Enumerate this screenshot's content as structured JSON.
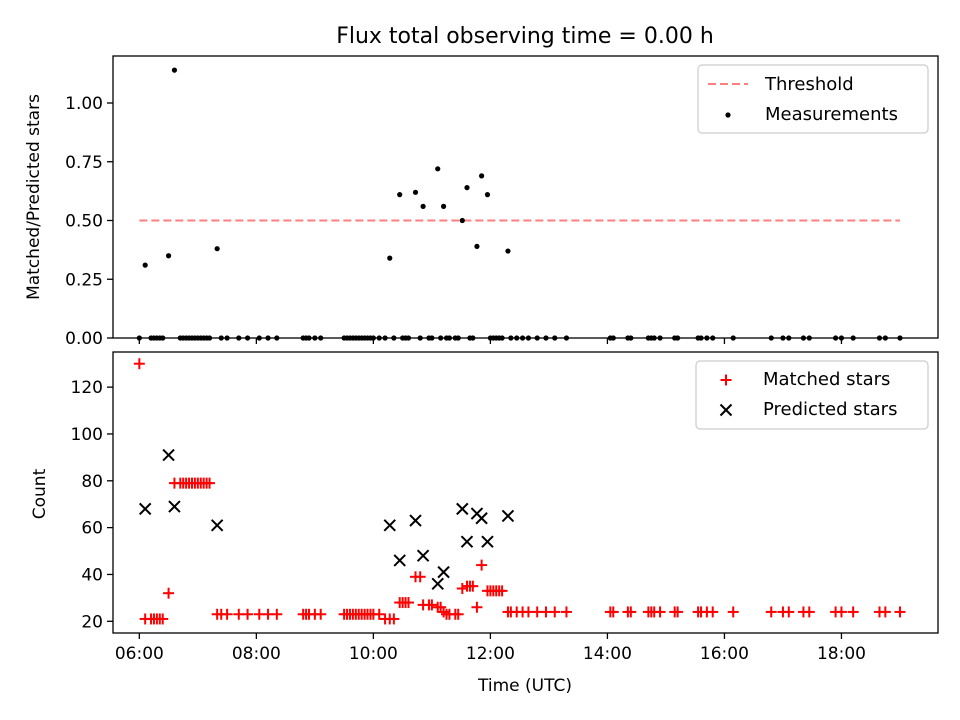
{
  "title": "Flux total observing time = 0.00 h",
  "colors": {
    "threshold": "#ff7f7f",
    "matched": "#ff0000",
    "predicted": "#000000",
    "measurement": "#000000"
  },
  "chart_data": [
    {
      "type": "scatter",
      "ylabel": "Matched/Predicted stars",
      "xlim": [
        5.55,
        19.65
      ],
      "ylim": [
        0,
        1.2
      ],
      "yticks": [
        0,
        0.25,
        0.5,
        0.75,
        1.0
      ],
      "ytick_labels": [
        "0.00",
        "0.25",
        "0.50",
        "0.75",
        "1.00"
      ],
      "legend_position": "top-right",
      "legend": [
        "Threshold",
        "Measurements"
      ],
      "threshold": {
        "name": "Threshold",
        "y": 0.5,
        "x": [
          6.0,
          19.0
        ],
        "style": "dashed"
      },
      "measurements": {
        "name": "Measurements",
        "points": [
          [
            6.0,
            0
          ],
          [
            6.1,
            0.31
          ],
          [
            6.2,
            0
          ],
          [
            6.25,
            0
          ],
          [
            6.3,
            0
          ],
          [
            6.35,
            0
          ],
          [
            6.4,
            0
          ],
          [
            6.5,
            0.35
          ],
          [
            6.6,
            1.14
          ],
          [
            6.7,
            0
          ],
          [
            6.75,
            0
          ],
          [
            6.8,
            0
          ],
          [
            6.85,
            0
          ],
          [
            6.9,
            0
          ],
          [
            6.95,
            0
          ],
          [
            7.0,
            0
          ],
          [
            7.05,
            0
          ],
          [
            7.1,
            0
          ],
          [
            7.15,
            0
          ],
          [
            7.2,
            0
          ],
          [
            7.33,
            0.38
          ],
          [
            7.4,
            0
          ],
          [
            7.5,
            0
          ],
          [
            7.7,
            0
          ],
          [
            7.85,
            0
          ],
          [
            8.05,
            0
          ],
          [
            8.2,
            0
          ],
          [
            8.35,
            0
          ],
          [
            8.8,
            0
          ],
          [
            8.85,
            0
          ],
          [
            8.9,
            0
          ],
          [
            9.0,
            0
          ],
          [
            9.1,
            0
          ],
          [
            9.5,
            0
          ],
          [
            9.55,
            0
          ],
          [
            9.6,
            0
          ],
          [
            9.65,
            0
          ],
          [
            9.7,
            0
          ],
          [
            9.75,
            0
          ],
          [
            9.8,
            0
          ],
          [
            9.85,
            0
          ],
          [
            9.9,
            0
          ],
          [
            9.95,
            0
          ],
          [
            10.0,
            0
          ],
          [
            10.1,
            0
          ],
          [
            10.2,
            0
          ],
          [
            10.28,
            0.34
          ],
          [
            10.35,
            0
          ],
          [
            10.45,
            0.61
          ],
          [
            10.5,
            0
          ],
          [
            10.55,
            0
          ],
          [
            10.6,
            0
          ],
          [
            10.72,
            0.62
          ],
          [
            10.8,
            0
          ],
          [
            10.85,
            0.56
          ],
          [
            10.95,
            0
          ],
          [
            11.0,
            0
          ],
          [
            11.1,
            0.72
          ],
          [
            11.15,
            0
          ],
          [
            11.2,
            0.56
          ],
          [
            11.25,
            0
          ],
          [
            11.3,
            0
          ],
          [
            11.4,
            0
          ],
          [
            11.45,
            0
          ],
          [
            11.52,
            0.5
          ],
          [
            11.6,
            0.64
          ],
          [
            11.65,
            0
          ],
          [
            11.7,
            0
          ],
          [
            11.77,
            0.39
          ],
          [
            11.85,
            0.69
          ],
          [
            11.95,
            0.61
          ],
          [
            12.0,
            0
          ],
          [
            12.05,
            0
          ],
          [
            12.1,
            0
          ],
          [
            12.15,
            0
          ],
          [
            12.2,
            0
          ],
          [
            12.3,
            0.37
          ],
          [
            12.35,
            0
          ],
          [
            12.45,
            0
          ],
          [
            12.55,
            0
          ],
          [
            12.65,
            0
          ],
          [
            12.8,
            0
          ],
          [
            12.95,
            0
          ],
          [
            13.1,
            0
          ],
          [
            13.3,
            0
          ],
          [
            14.05,
            0
          ],
          [
            14.1,
            0
          ],
          [
            14.35,
            0
          ],
          [
            14.4,
            0
          ],
          [
            14.7,
            0
          ],
          [
            14.75,
            0
          ],
          [
            14.8,
            0
          ],
          [
            14.9,
            0
          ],
          [
            15.15,
            0
          ],
          [
            15.2,
            0
          ],
          [
            15.55,
            0
          ],
          [
            15.6,
            0
          ],
          [
            15.7,
            0
          ],
          [
            15.8,
            0
          ],
          [
            16.15,
            0
          ],
          [
            16.8,
            0
          ],
          [
            17.0,
            0
          ],
          [
            17.1,
            0
          ],
          [
            17.35,
            0
          ],
          [
            17.45,
            0
          ],
          [
            17.9,
            0
          ],
          [
            18.0,
            0
          ],
          [
            18.2,
            0
          ],
          [
            18.65,
            0
          ],
          [
            18.75,
            0
          ],
          [
            19.0,
            0
          ]
        ]
      }
    },
    {
      "type": "scatter",
      "xlabel": "Time (UTC)",
      "ylabel": "Count",
      "xlim": [
        5.55,
        19.65
      ],
      "ylim": [
        15,
        135
      ],
      "xticks": [
        6,
        8,
        10,
        12,
        14,
        16,
        18
      ],
      "xtick_labels": [
        "06:00",
        "08:00",
        "10:00",
        "12:00",
        "14:00",
        "16:00",
        "18:00"
      ],
      "yticks": [
        20,
        40,
        60,
        80,
        100,
        120
      ],
      "ytick_labels": [
        "20",
        "40",
        "60",
        "80",
        "100",
        "120"
      ],
      "legend_position": "top-right",
      "legend": [
        "Matched stars",
        "Predicted stars"
      ],
      "series": [
        {
          "name": "Matched stars",
          "marker": "plus",
          "points": [
            [
              6.0,
              130
            ],
            [
              6.1,
              21
            ],
            [
              6.2,
              21
            ],
            [
              6.25,
              21
            ],
            [
              6.3,
              21
            ],
            [
              6.35,
              21
            ],
            [
              6.4,
              21
            ],
            [
              6.5,
              32
            ],
            [
              6.6,
              79
            ],
            [
              6.7,
              79
            ],
            [
              6.75,
              79
            ],
            [
              6.8,
              79
            ],
            [
              6.85,
              79
            ],
            [
              6.9,
              79
            ],
            [
              6.95,
              79
            ],
            [
              7.0,
              79
            ],
            [
              7.05,
              79
            ],
            [
              7.1,
              79
            ],
            [
              7.15,
              79
            ],
            [
              7.2,
              79
            ],
            [
              7.33,
              23
            ],
            [
              7.4,
              23
            ],
            [
              7.5,
              23
            ],
            [
              7.7,
              23
            ],
            [
              7.85,
              23
            ],
            [
              8.05,
              23
            ],
            [
              8.2,
              23
            ],
            [
              8.35,
              23
            ],
            [
              8.8,
              23
            ],
            [
              8.85,
              23
            ],
            [
              8.9,
              23
            ],
            [
              9.0,
              23
            ],
            [
              9.1,
              23
            ],
            [
              9.5,
              23
            ],
            [
              9.55,
              23
            ],
            [
              9.6,
              23
            ],
            [
              9.65,
              23
            ],
            [
              9.7,
              23
            ],
            [
              9.75,
              23
            ],
            [
              9.8,
              23
            ],
            [
              9.85,
              23
            ],
            [
              9.9,
              23
            ],
            [
              9.95,
              23
            ],
            [
              10.0,
              23
            ],
            [
              10.1,
              23
            ],
            [
              10.2,
              21
            ],
            [
              10.28,
              21
            ],
            [
              10.35,
              21
            ],
            [
              10.45,
              28
            ],
            [
              10.5,
              28
            ],
            [
              10.55,
              28
            ],
            [
              10.6,
              28
            ],
            [
              10.72,
              39
            ],
            [
              10.8,
              39
            ],
            [
              10.85,
              27
            ],
            [
              10.95,
              27
            ],
            [
              11.0,
              27
            ],
            [
              11.1,
              26
            ],
            [
              11.15,
              26
            ],
            [
              11.2,
              24
            ],
            [
              11.25,
              23
            ],
            [
              11.3,
              23
            ],
            [
              11.4,
              23
            ],
            [
              11.45,
              23
            ],
            [
              11.52,
              34
            ],
            [
              11.6,
              35
            ],
            [
              11.65,
              35
            ],
            [
              11.7,
              35
            ],
            [
              11.77,
              26
            ],
            [
              11.85,
              44
            ],
            [
              11.95,
              33
            ],
            [
              12.0,
              33
            ],
            [
              12.05,
              33
            ],
            [
              12.1,
              33
            ],
            [
              12.15,
              33
            ],
            [
              12.2,
              33
            ],
            [
              12.3,
              24
            ],
            [
              12.35,
              24
            ],
            [
              12.45,
              24
            ],
            [
              12.55,
              24
            ],
            [
              12.65,
              24
            ],
            [
              12.8,
              24
            ],
            [
              12.95,
              24
            ],
            [
              13.1,
              24
            ],
            [
              13.3,
              24
            ],
            [
              14.05,
              24
            ],
            [
              14.1,
              24
            ],
            [
              14.35,
              24
            ],
            [
              14.4,
              24
            ],
            [
              14.7,
              24
            ],
            [
              14.75,
              24
            ],
            [
              14.8,
              24
            ],
            [
              14.9,
              24
            ],
            [
              15.15,
              24
            ],
            [
              15.2,
              24
            ],
            [
              15.55,
              24
            ],
            [
              15.6,
              24
            ],
            [
              15.7,
              24
            ],
            [
              15.8,
              24
            ],
            [
              16.15,
              24
            ],
            [
              16.8,
              24
            ],
            [
              17.0,
              24
            ],
            [
              17.1,
              24
            ],
            [
              17.35,
              24
            ],
            [
              17.45,
              24
            ],
            [
              17.9,
              24
            ],
            [
              18.0,
              24
            ],
            [
              18.2,
              24
            ],
            [
              18.65,
              24
            ],
            [
              18.75,
              24
            ],
            [
              19.0,
              24
            ]
          ]
        },
        {
          "name": "Predicted stars",
          "marker": "x",
          "points": [
            [
              6.1,
              68
            ],
            [
              6.5,
              91
            ],
            [
              6.6,
              69
            ],
            [
              7.33,
              61
            ],
            [
              10.28,
              61
            ],
            [
              10.45,
              46
            ],
            [
              10.72,
              63
            ],
            [
              10.85,
              48
            ],
            [
              11.1,
              36
            ],
            [
              11.2,
              41
            ],
            [
              11.52,
              68
            ],
            [
              11.6,
              54
            ],
            [
              11.77,
              66
            ],
            [
              11.85,
              64
            ],
            [
              11.95,
              54
            ],
            [
              12.3,
              65
            ]
          ]
        }
      ]
    }
  ]
}
